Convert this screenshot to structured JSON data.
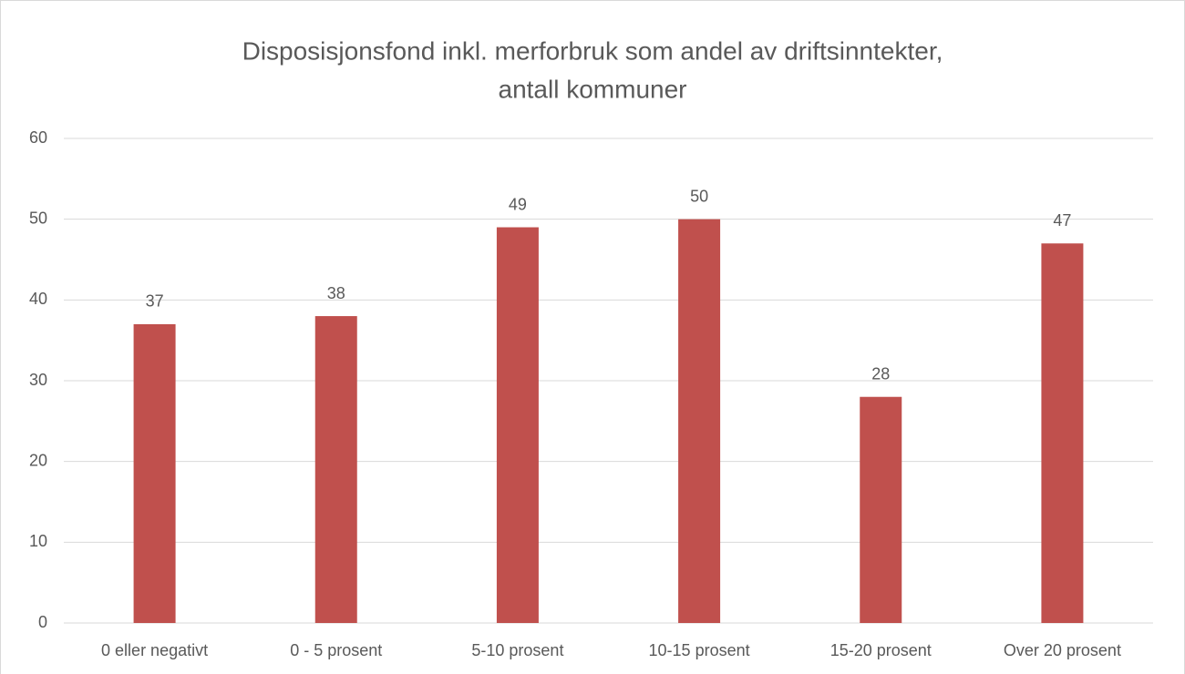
{
  "chart_data": {
    "type": "bar",
    "title": [
      "Disposisjonsfond  inkl. merforbruk  som andel av driftsinntekter,",
      "antall kommuner"
    ],
    "categories": [
      "0 eller negativt",
      "0 - 5 prosent",
      "5-10 prosent",
      "10-15 prosent",
      "15-20 prosent",
      "Over 20 prosent"
    ],
    "values": [
      37,
      38,
      49,
      50,
      28,
      47
    ],
    "color": "#c0504d",
    "ylim": [
      0,
      60
    ],
    "yticks": [
      0,
      10,
      20,
      30,
      40,
      50,
      60
    ],
    "grid": true
  }
}
